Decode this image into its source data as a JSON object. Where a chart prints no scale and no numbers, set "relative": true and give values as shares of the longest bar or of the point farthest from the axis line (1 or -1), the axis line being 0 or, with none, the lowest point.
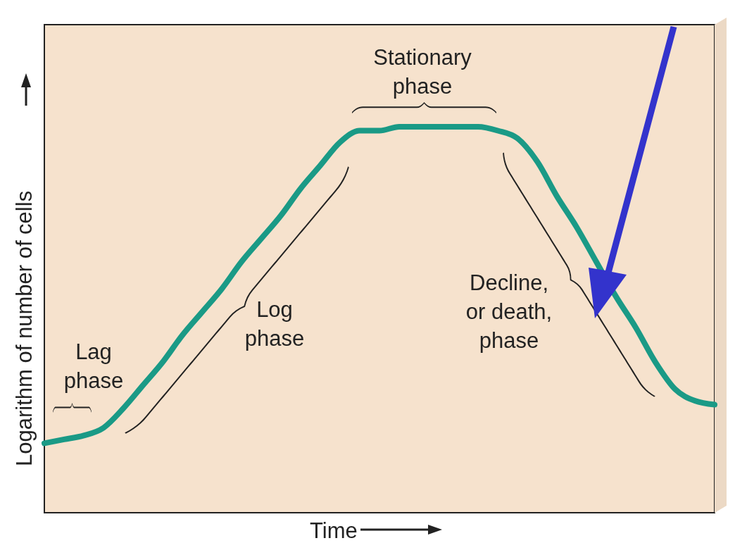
{
  "chart_data": {
    "type": "line",
    "relative": true,
    "xlabel": "Time",
    "ylabel": "Logarithm of number of cells",
    "categories": [
      null,
      null,
      null,
      null,
      null,
      null,
      null,
      null,
      null,
      null,
      null,
      null,
      null,
      null,
      null,
      null,
      null,
      null,
      null,
      null,
      null,
      null,
      null,
      null,
      null,
      null,
      null,
      null,
      null,
      null,
      null,
      null,
      null,
      null,
      null
    ],
    "series": [
      {
        "color": "#1a9a86",
        "values": [
          0.18,
          0.19,
          0.2,
          0.22,
          0.27,
          0.33,
          0.39,
          0.46,
          0.52,
          0.58,
          0.65,
          0.71,
          0.77,
          0.84,
          0.9,
          0.96,
          0.99,
          0.99,
          1.0,
          1.0,
          1.0,
          1.0,
          1.0,
          0.99,
          0.97,
          0.91,
          0.82,
          0.74,
          0.65,
          0.56,
          0.48,
          0.39,
          0.32,
          0.29,
          0.28
        ]
      }
    ],
    "annotations": [
      "Lag phase",
      "Log phase",
      "Stationary phase",
      "Decline, or death, phase"
    ]
  }
}
